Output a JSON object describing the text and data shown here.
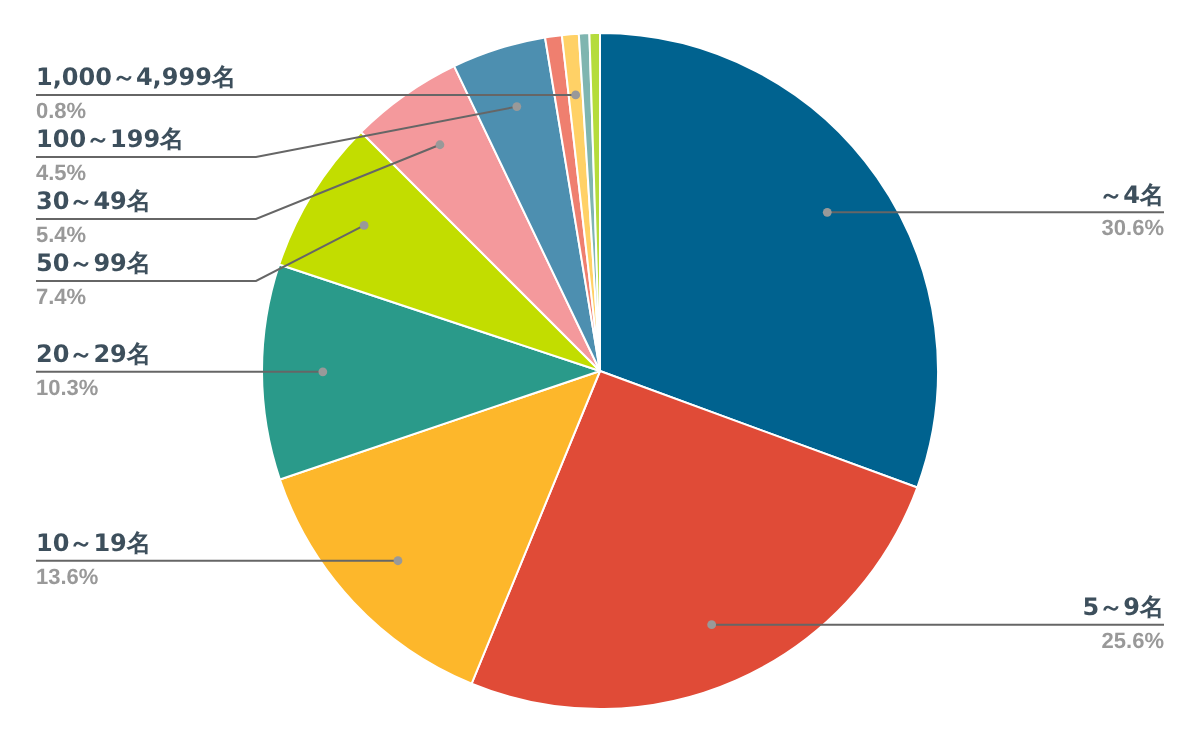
{
  "chart_data": {
    "type": "pie",
    "categories": [
      "～4名",
      "5～9名",
      "10～19名",
      "20～29名",
      "50～99名",
      "30～49名",
      "100～199名",
      null,
      "1,000～4,999名",
      null,
      null
    ],
    "values": [
      30.6,
      25.6,
      13.6,
      10.3,
      7.4,
      5.4,
      4.5,
      0.8,
      0.8,
      0.5,
      0.5
    ],
    "value_labels": [
      "30.6%",
      "25.6%",
      "13.6%",
      "10.3%",
      "7.4%",
      "5.4%",
      "4.5%",
      null,
      "0.8%",
      null,
      null
    ],
    "colors": [
      "#00628f",
      "#e04b37",
      "#fdb72b",
      "#2a9a8a",
      "#c2dd00",
      "#f4999c",
      "#4d8fb0",
      "#ef7f6f",
      "#ffd166",
      "#7fb5b0",
      "#b5dc3c"
    ],
    "legend": false
  }
}
